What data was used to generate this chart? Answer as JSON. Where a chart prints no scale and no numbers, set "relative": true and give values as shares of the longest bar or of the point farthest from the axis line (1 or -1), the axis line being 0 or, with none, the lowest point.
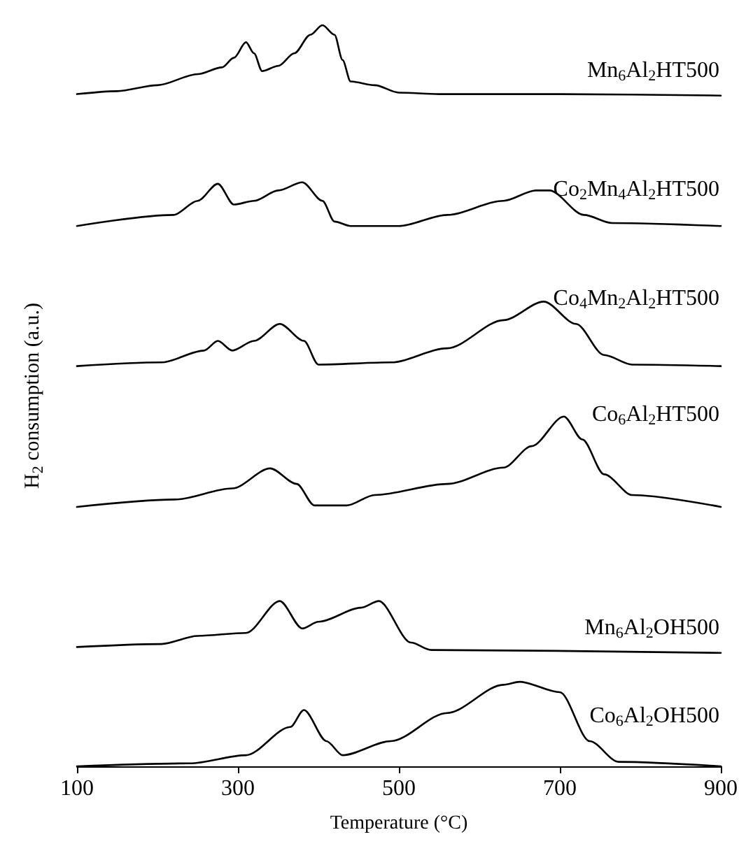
{
  "chart_data": {
    "type": "line",
    "relative": true,
    "xlabel": "Temperature (°C)",
    "ylabel": "H$_{2}$ consumption (a.u.)",
    "xlim": [
      100,
      900
    ],
    "xticks": [
      100,
      300,
      500,
      700,
      900
    ],
    "grid": false,
    "legend": false,
    "marker": "none",
    "line_style": "solid",
    "series": [
      {
        "name": "Mn$_{6}$Al$_{2}$HT500",
        "color": "#000000",
        "x": [
          100,
          150,
          200,
          250,
          280,
          295,
          310,
          320,
          330,
          350,
          370,
          390,
          405,
          420,
          430,
          440,
          470,
          500,
          550,
          700,
          900
        ],
        "values": [
          0.907,
          0.911,
          0.919,
          0.934,
          0.943,
          0.956,
          0.977,
          0.962,
          0.938,
          0.945,
          0.962,
          0.987,
          1.0,
          0.987,
          0.953,
          0.924,
          0.919,
          0.909,
          0.907,
          0.907,
          0.905
        ]
      },
      {
        "name": "Co$_{2}$Mn$_{4}$Al$_{2}$HT500",
        "color": "#000000",
        "x": [
          100,
          220,
          250,
          275,
          295,
          320,
          350,
          380,
          405,
          420,
          440,
          500,
          560,
          630,
          670,
          687,
          730,
          765,
          900
        ],
        "values": [
          0.729,
          0.744,
          0.763,
          0.786,
          0.758,
          0.763,
          0.777,
          0.788,
          0.763,
          0.735,
          0.729,
          0.729,
          0.744,
          0.763,
          0.777,
          0.777,
          0.744,
          0.733,
          0.729
        ]
      },
      {
        "name": "Co$_{4}$Mn$_{2}$Al$_{2}$HT500",
        "color": "#000000",
        "x": [
          100,
          205,
          258,
          275,
          293,
          320,
          352,
          382,
          400,
          490,
          560,
          630,
          680,
          720,
          755,
          790,
          900
        ],
        "values": [
          0.54,
          0.545,
          0.561,
          0.574,
          0.561,
          0.574,
          0.597,
          0.574,
          0.542,
          0.545,
          0.564,
          0.602,
          0.627,
          0.597,
          0.555,
          0.542,
          0.54
        ]
      },
      {
        "name": "Co$_{6}$Al$_{2}$HT500",
        "color": "#000000",
        "x": [
          100,
          222,
          293,
          340,
          373,
          395,
          435,
          470,
          560,
          630,
          665,
          705,
          728,
          755,
          790,
          900
        ],
        "values": [
          0.35,
          0.36,
          0.375,
          0.402,
          0.381,
          0.352,
          0.352,
          0.366,
          0.381,
          0.403,
          0.432,
          0.472,
          0.441,
          0.394,
          0.366,
          0.35
        ]
      },
      {
        "name": "Mn$_{6}$Al$_{2}$OH500",
        "color": "#000000",
        "x": [
          100,
          205,
          250,
          310,
          352,
          380,
          400,
          453,
          475,
          515,
          540,
          900
        ],
        "values": [
          0.161,
          0.165,
          0.176,
          0.18,
          0.223,
          0.186,
          0.195,
          0.214,
          0.223,
          0.167,
          0.157,
          0.153
        ]
      },
      {
        "name": "Co$_{6}$Al$_{2}$OH500",
        "color": "#000000",
        "x": [
          100,
          240,
          310,
          365,
          382,
          410,
          430,
          490,
          560,
          630,
          650,
          700,
          737,
          773,
          900
        ],
        "values": [
          0,
          0.004,
          0.015,
          0.053,
          0.076,
          0.034,
          0.015,
          0.034,
          0.072,
          0.11,
          0.114,
          0.1,
          0.034,
          0.006,
          0
        ]
      }
    ]
  }
}
